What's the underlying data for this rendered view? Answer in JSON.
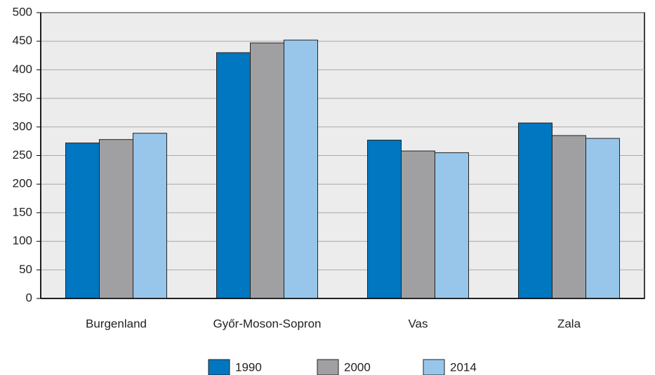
{
  "chart_data": {
    "type": "bar",
    "categories": [
      "Burgenland",
      "Győr-Moson-Sopron",
      "Vas",
      "Zala"
    ],
    "series": [
      {
        "name": "1990",
        "color": "#0077c0",
        "values": [
          272,
          430,
          277,
          307
        ]
      },
      {
        "name": "2000",
        "color": "#a0a0a2",
        "values": [
          278,
          447,
          258,
          285
        ]
      },
      {
        "name": "2014",
        "color": "#97c6ea",
        "values": [
          289,
          452,
          255,
          280
        ]
      }
    ],
    "ylim": [
      0,
      500
    ],
    "yticks": [
      0,
      50,
      100,
      150,
      200,
      250,
      300,
      350,
      400,
      450,
      500
    ],
    "grid": true,
    "legend": "bottom"
  }
}
